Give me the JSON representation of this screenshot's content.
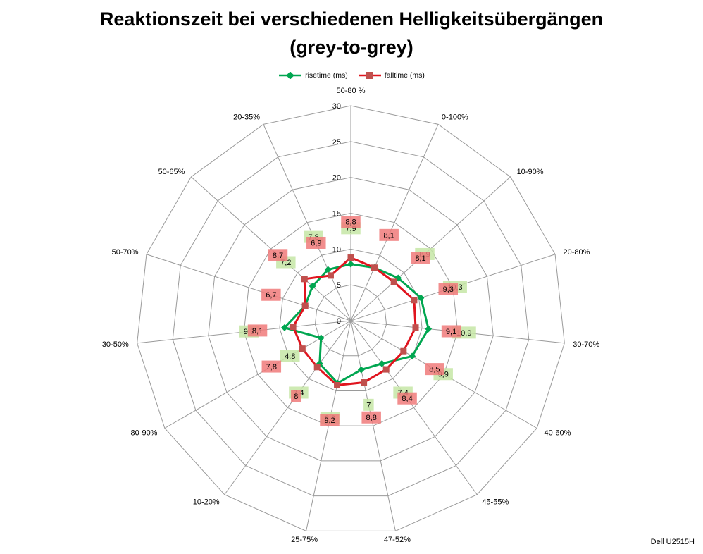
{
  "chart_data": {
    "type": "radar",
    "title": "Reaktionszeit bei verschiedenen Helligkeitsübergängen",
    "subtitle": "(grey-to-grey)",
    "categories": [
      "50-80 %",
      "0-100%",
      "10-90%",
      "20-80%",
      "30-70%",
      "40-60%",
      "45-55%",
      "47-52%",
      "25-75%",
      "10-20%",
      "80-90%",
      "30-50%",
      "50-70%",
      "50-65%",
      "20-35%"
    ],
    "rlim": [
      0,
      30
    ],
    "ticks": [
      0,
      5,
      10,
      15,
      20,
      25,
      30
    ],
    "grid": true,
    "legend": "top",
    "series": [
      {
        "name": "risetime (ms)",
        "color": "#00a650",
        "label_bg": "#c6e6a6",
        "values": [
          7.9,
          8.1,
          8.9,
          10.3,
          10.9,
          9.9,
          7.4,
          7,
          8.9,
          7.4,
          4.8,
          9.3,
          6.7,
          7.2,
          7.8
        ],
        "labels": [
          "7,9",
          "",
          "8,9",
          "10,3",
          "10,9",
          "9,9",
          "7,4",
          "7",
          "8,9",
          "7,4",
          "4,8",
          "9,3",
          "",
          "7,2",
          "7,8"
        ]
      },
      {
        "name": "falltime (ms)",
        "color": "#e0141e",
        "label_bg": "#f07a7a",
        "values": [
          8.8,
          8.1,
          8.1,
          9.3,
          9.1,
          8.5,
          8.4,
          8.8,
          9.2,
          8,
          7.8,
          8.1,
          6.7,
          8.7,
          6.9
        ],
        "labels": [
          "8,8",
          "8,1",
          "8,1",
          "9,3",
          "9,1",
          "8,5",
          "8,4",
          "8,8",
          "9,2",
          "8",
          "7,8",
          "8,1",
          "6,7",
          "8,7",
          "6,9"
        ]
      }
    ]
  },
  "footer": "Dell U2515H"
}
